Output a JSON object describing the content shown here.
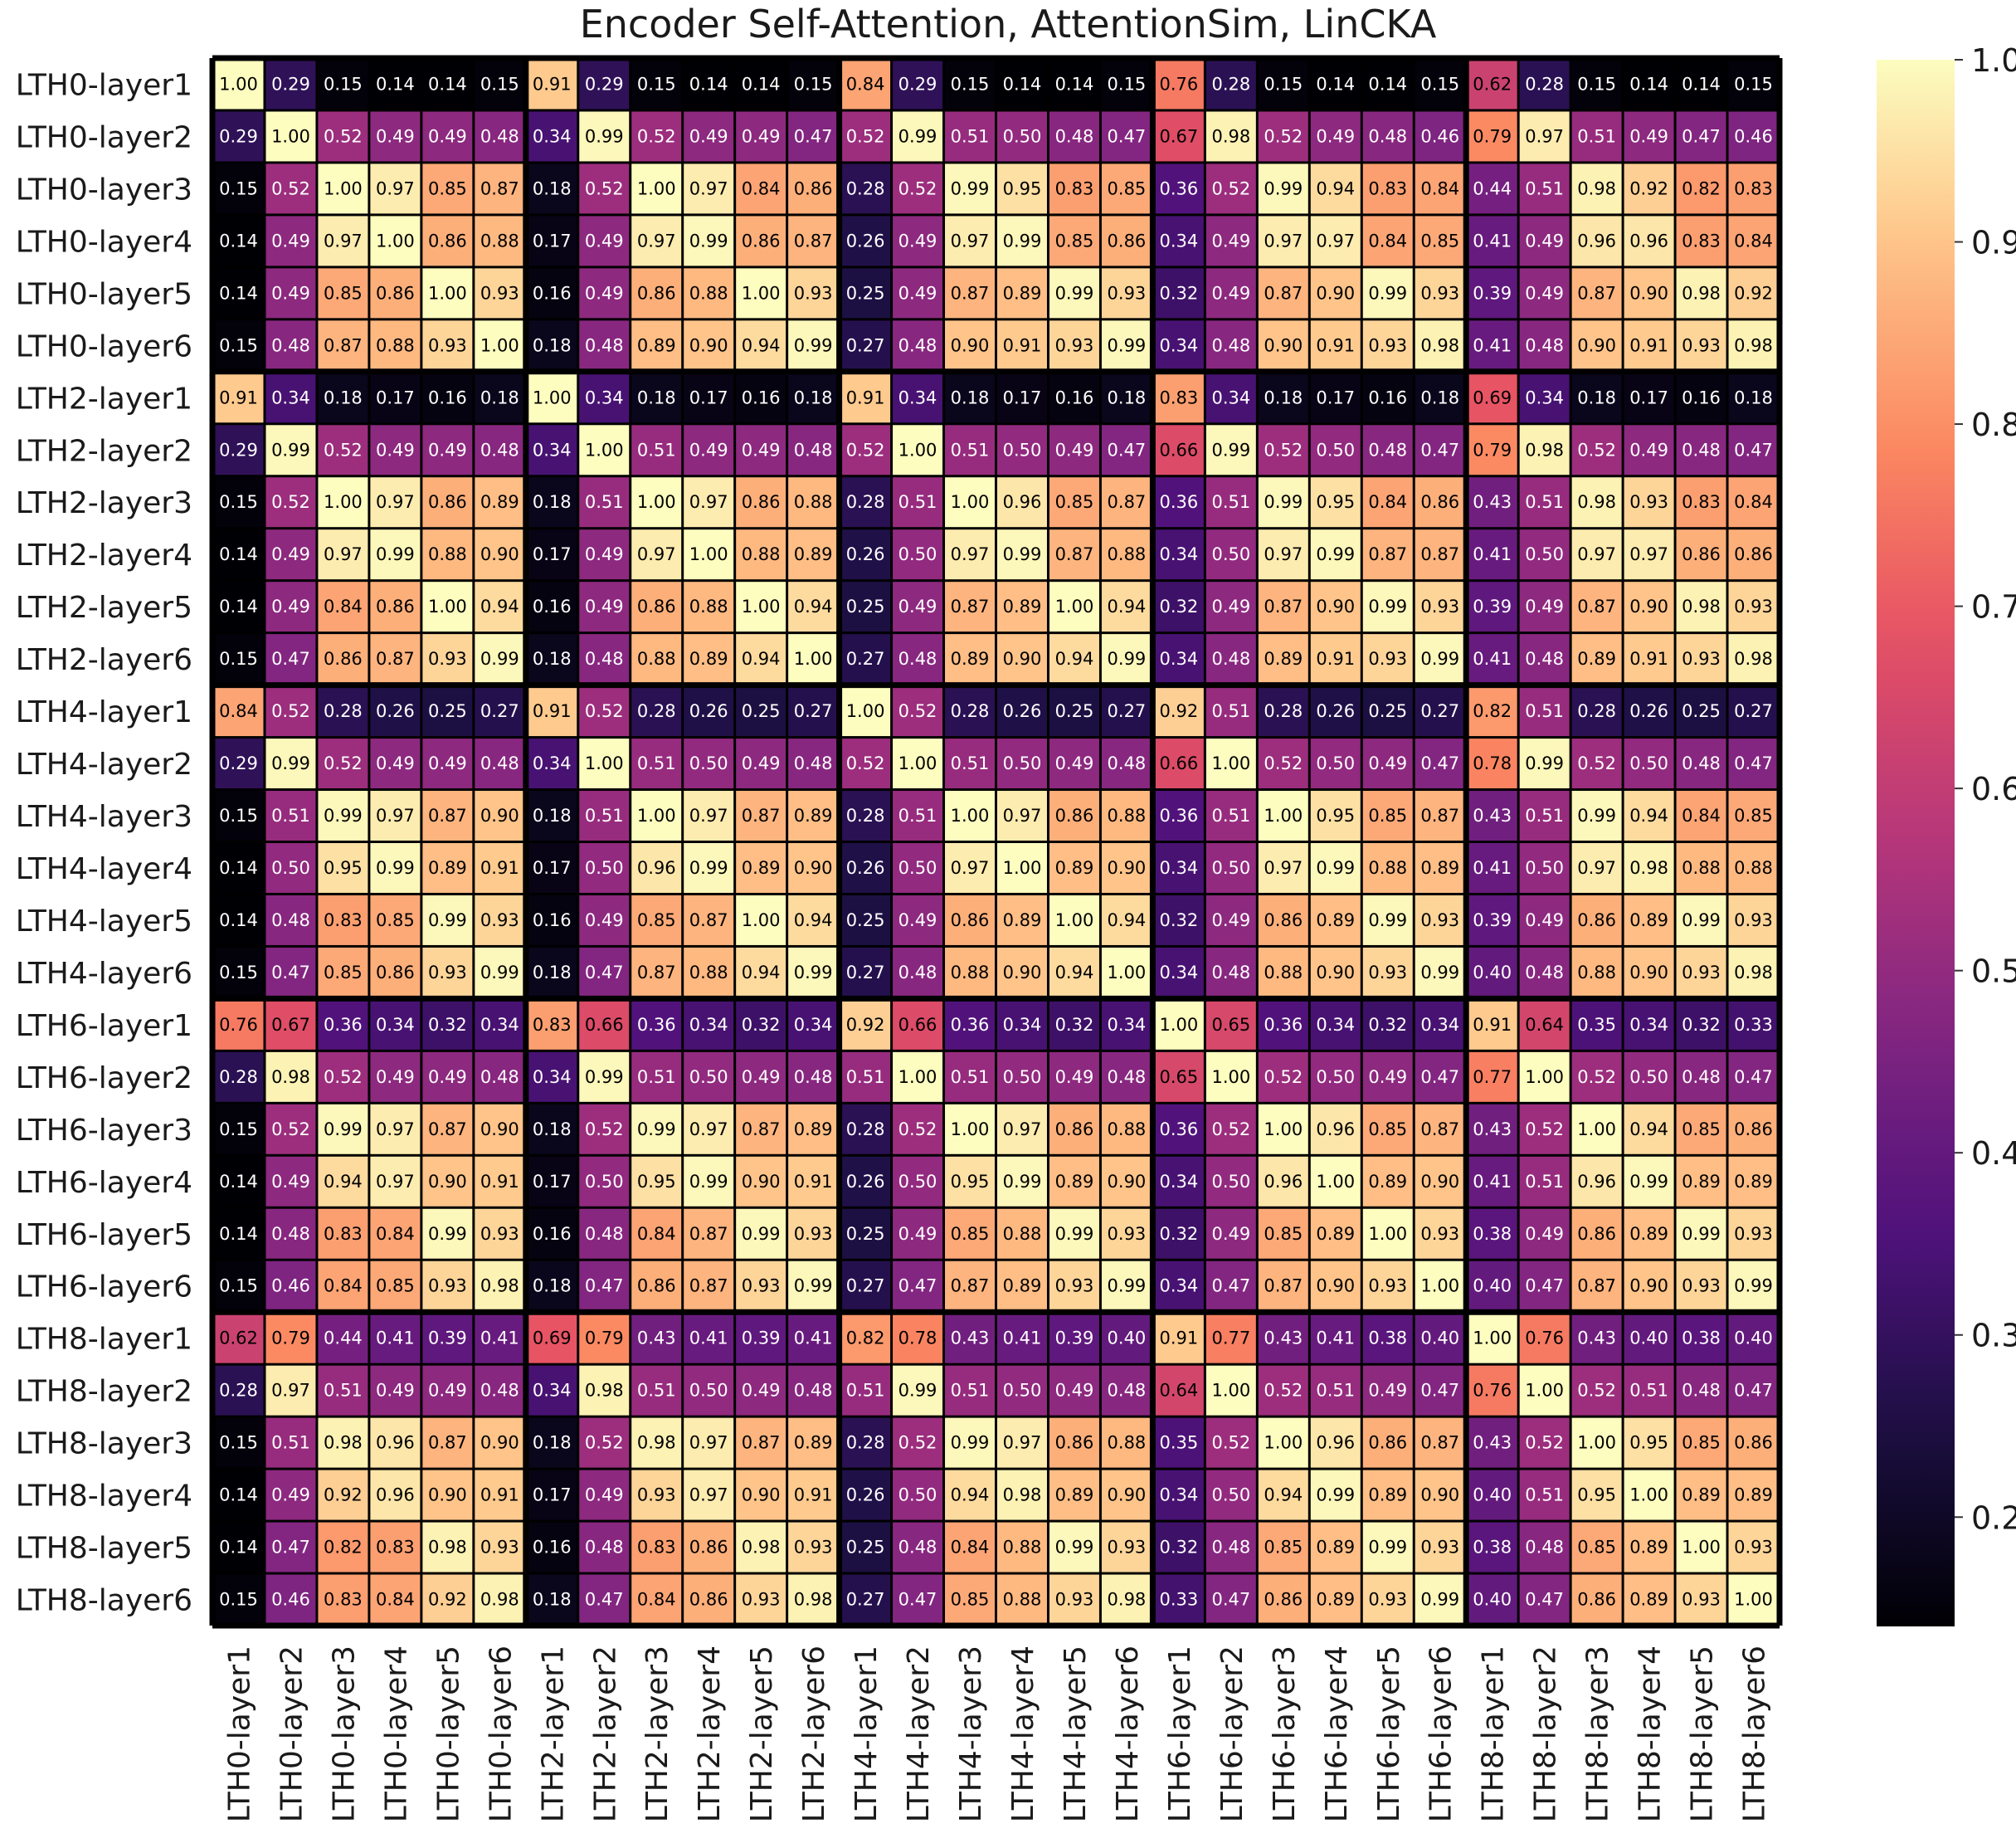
{
  "chart_data": {
    "type": "heatmap",
    "title": "Encoder Self-Attention, AttentionSim, LinCKA",
    "row_labels": [
      "LTH0-layer1",
      "LTH0-layer2",
      "LTH0-layer3",
      "LTH0-layer4",
      "LTH0-layer5",
      "LTH0-layer6",
      "LTH2-layer1",
      "LTH2-layer2",
      "LTH2-layer3",
      "LTH2-layer4",
      "LTH2-layer5",
      "LTH2-layer6",
      "LTH4-layer1",
      "LTH4-layer2",
      "LTH4-layer3",
      "LTH4-layer4",
      "LTH4-layer5",
      "LTH4-layer6",
      "LTH6-layer1",
      "LTH6-layer2",
      "LTH6-layer3",
      "LTH6-layer4",
      "LTH6-layer5",
      "LTH6-layer6",
      "LTH8-layer1",
      "LTH8-layer2",
      "LTH8-layer3",
      "LTH8-layer4",
      "LTH8-layer5",
      "LTH8-layer6"
    ],
    "col_labels": [
      "LTH0-layer1",
      "LTH0-layer2",
      "LTH0-layer3",
      "LTH0-layer4",
      "LTH0-layer5",
      "LTH0-layer6",
      "LTH2-layer1",
      "LTH2-layer2",
      "LTH2-layer3",
      "LTH2-layer4",
      "LTH2-layer5",
      "LTH2-layer6",
      "LTH4-layer1",
      "LTH4-layer2",
      "LTH4-layer3",
      "LTH4-layer4",
      "LTH4-layer5",
      "LTH4-layer6",
      "LTH6-layer1",
      "LTH6-layer2",
      "LTH6-layer3",
      "LTH6-layer4",
      "LTH6-layer5",
      "LTH6-layer6",
      "LTH8-layer1",
      "LTH8-layer2",
      "LTH8-layer3",
      "LTH8-layer4",
      "LTH8-layer5",
      "LTH8-layer6"
    ],
    "values": [
      [
        1.0,
        0.29,
        0.15,
        0.14,
        0.14,
        0.15,
        0.91,
        0.29,
        0.15,
        0.14,
        0.14,
        0.15,
        0.84,
        0.29,
        0.15,
        0.14,
        0.14,
        0.15,
        0.76,
        0.28,
        0.15,
        0.14,
        0.14,
        0.15,
        0.62,
        0.28,
        0.15,
        0.14,
        0.14,
        0.15
      ],
      [
        0.29,
        1.0,
        0.52,
        0.49,
        0.49,
        0.48,
        0.34,
        0.99,
        0.52,
        0.49,
        0.49,
        0.47,
        0.52,
        0.99,
        0.51,
        0.5,
        0.48,
        0.47,
        0.67,
        0.98,
        0.52,
        0.49,
        0.48,
        0.46,
        0.79,
        0.97,
        0.51,
        0.49,
        0.47,
        0.46
      ],
      [
        0.15,
        0.52,
        1.0,
        0.97,
        0.85,
        0.87,
        0.18,
        0.52,
        1.0,
        0.97,
        0.84,
        0.86,
        0.28,
        0.52,
        0.99,
        0.95,
        0.83,
        0.85,
        0.36,
        0.52,
        0.99,
        0.94,
        0.83,
        0.84,
        0.44,
        0.51,
        0.98,
        0.92,
        0.82,
        0.83
      ],
      [
        0.14,
        0.49,
        0.97,
        1.0,
        0.86,
        0.88,
        0.17,
        0.49,
        0.97,
        0.99,
        0.86,
        0.87,
        0.26,
        0.49,
        0.97,
        0.99,
        0.85,
        0.86,
        0.34,
        0.49,
        0.97,
        0.97,
        0.84,
        0.85,
        0.41,
        0.49,
        0.96,
        0.96,
        0.83,
        0.84
      ],
      [
        0.14,
        0.49,
        0.85,
        0.86,
        1.0,
        0.93,
        0.16,
        0.49,
        0.86,
        0.88,
        1.0,
        0.93,
        0.25,
        0.49,
        0.87,
        0.89,
        0.99,
        0.93,
        0.32,
        0.49,
        0.87,
        0.9,
        0.99,
        0.93,
        0.39,
        0.49,
        0.87,
        0.9,
        0.98,
        0.92
      ],
      [
        0.15,
        0.48,
        0.87,
        0.88,
        0.93,
        1.0,
        0.18,
        0.48,
        0.89,
        0.9,
        0.94,
        0.99,
        0.27,
        0.48,
        0.9,
        0.91,
        0.93,
        0.99,
        0.34,
        0.48,
        0.9,
        0.91,
        0.93,
        0.98,
        0.41,
        0.48,
        0.9,
        0.91,
        0.93,
        0.98
      ],
      [
        0.91,
        0.34,
        0.18,
        0.17,
        0.16,
        0.18,
        1.0,
        0.34,
        0.18,
        0.17,
        0.16,
        0.18,
        0.91,
        0.34,
        0.18,
        0.17,
        0.16,
        0.18,
        0.83,
        0.34,
        0.18,
        0.17,
        0.16,
        0.18,
        0.69,
        0.34,
        0.18,
        0.17,
        0.16,
        0.18
      ],
      [
        0.29,
        0.99,
        0.52,
        0.49,
        0.49,
        0.48,
        0.34,
        1.0,
        0.51,
        0.49,
        0.49,
        0.48,
        0.52,
        1.0,
        0.51,
        0.5,
        0.49,
        0.47,
        0.66,
        0.99,
        0.52,
        0.5,
        0.48,
        0.47,
        0.79,
        0.98,
        0.52,
        0.49,
        0.48,
        0.47
      ],
      [
        0.15,
        0.52,
        1.0,
        0.97,
        0.86,
        0.89,
        0.18,
        0.51,
        1.0,
        0.97,
        0.86,
        0.88,
        0.28,
        0.51,
        1.0,
        0.96,
        0.85,
        0.87,
        0.36,
        0.51,
        0.99,
        0.95,
        0.84,
        0.86,
        0.43,
        0.51,
        0.98,
        0.93,
        0.83,
        0.84
      ],
      [
        0.14,
        0.49,
        0.97,
        0.99,
        0.88,
        0.9,
        0.17,
        0.49,
        0.97,
        1.0,
        0.88,
        0.89,
        0.26,
        0.5,
        0.97,
        0.99,
        0.87,
        0.88,
        0.34,
        0.5,
        0.97,
        0.99,
        0.87,
        0.87,
        0.41,
        0.5,
        0.97,
        0.97,
        0.86,
        0.86
      ],
      [
        0.14,
        0.49,
        0.84,
        0.86,
        1.0,
        0.94,
        0.16,
        0.49,
        0.86,
        0.88,
        1.0,
        0.94,
        0.25,
        0.49,
        0.87,
        0.89,
        1.0,
        0.94,
        0.32,
        0.49,
        0.87,
        0.9,
        0.99,
        0.93,
        0.39,
        0.49,
        0.87,
        0.9,
        0.98,
        0.93
      ],
      [
        0.15,
        0.47,
        0.86,
        0.87,
        0.93,
        0.99,
        0.18,
        0.48,
        0.88,
        0.89,
        0.94,
        1.0,
        0.27,
        0.48,
        0.89,
        0.9,
        0.94,
        0.99,
        0.34,
        0.48,
        0.89,
        0.91,
        0.93,
        0.99,
        0.41,
        0.48,
        0.89,
        0.91,
        0.93,
        0.98
      ],
      [
        0.84,
        0.52,
        0.28,
        0.26,
        0.25,
        0.27,
        0.91,
        0.52,
        0.28,
        0.26,
        0.25,
        0.27,
        1.0,
        0.52,
        0.28,
        0.26,
        0.25,
        0.27,
        0.92,
        0.51,
        0.28,
        0.26,
        0.25,
        0.27,
        0.82,
        0.51,
        0.28,
        0.26,
        0.25,
        0.27
      ],
      [
        0.29,
        0.99,
        0.52,
        0.49,
        0.49,
        0.48,
        0.34,
        1.0,
        0.51,
        0.5,
        0.49,
        0.48,
        0.52,
        1.0,
        0.51,
        0.5,
        0.49,
        0.48,
        0.66,
        1.0,
        0.52,
        0.5,
        0.49,
        0.47,
        0.78,
        0.99,
        0.52,
        0.5,
        0.48,
        0.47
      ],
      [
        0.15,
        0.51,
        0.99,
        0.97,
        0.87,
        0.9,
        0.18,
        0.51,
        1.0,
        0.97,
        0.87,
        0.89,
        0.28,
        0.51,
        1.0,
        0.97,
        0.86,
        0.88,
        0.36,
        0.51,
        1.0,
        0.95,
        0.85,
        0.87,
        0.43,
        0.51,
        0.99,
        0.94,
        0.84,
        0.85
      ],
      [
        0.14,
        0.5,
        0.95,
        0.99,
        0.89,
        0.91,
        0.17,
        0.5,
        0.96,
        0.99,
        0.89,
        0.9,
        0.26,
        0.5,
        0.97,
        1.0,
        0.89,
        0.9,
        0.34,
        0.5,
        0.97,
        0.99,
        0.88,
        0.89,
        0.41,
        0.5,
        0.97,
        0.98,
        0.88,
        0.88
      ],
      [
        0.14,
        0.48,
        0.83,
        0.85,
        0.99,
        0.93,
        0.16,
        0.49,
        0.85,
        0.87,
        1.0,
        0.94,
        0.25,
        0.49,
        0.86,
        0.89,
        1.0,
        0.94,
        0.32,
        0.49,
        0.86,
        0.89,
        0.99,
        0.93,
        0.39,
        0.49,
        0.86,
        0.89,
        0.99,
        0.93
      ],
      [
        0.15,
        0.47,
        0.85,
        0.86,
        0.93,
        0.99,
        0.18,
        0.47,
        0.87,
        0.88,
        0.94,
        0.99,
        0.27,
        0.48,
        0.88,
        0.9,
        0.94,
        1.0,
        0.34,
        0.48,
        0.88,
        0.9,
        0.93,
        0.99,
        0.4,
        0.48,
        0.88,
        0.9,
        0.93,
        0.98
      ],
      [
        0.76,
        0.67,
        0.36,
        0.34,
        0.32,
        0.34,
        0.83,
        0.66,
        0.36,
        0.34,
        0.32,
        0.34,
        0.92,
        0.66,
        0.36,
        0.34,
        0.32,
        0.34,
        1.0,
        0.65,
        0.36,
        0.34,
        0.32,
        0.34,
        0.91,
        0.64,
        0.35,
        0.34,
        0.32,
        0.33
      ],
      [
        0.28,
        0.98,
        0.52,
        0.49,
        0.49,
        0.48,
        0.34,
        0.99,
        0.51,
        0.5,
        0.49,
        0.48,
        0.51,
        1.0,
        0.51,
        0.5,
        0.49,
        0.48,
        0.65,
        1.0,
        0.52,
        0.5,
        0.49,
        0.47,
        0.77,
        1.0,
        0.52,
        0.5,
        0.48,
        0.47
      ],
      [
        0.15,
        0.52,
        0.99,
        0.97,
        0.87,
        0.9,
        0.18,
        0.52,
        0.99,
        0.97,
        0.87,
        0.89,
        0.28,
        0.52,
        1.0,
        0.97,
        0.86,
        0.88,
        0.36,
        0.52,
        1.0,
        0.96,
        0.85,
        0.87,
        0.43,
        0.52,
        1.0,
        0.94,
        0.85,
        0.86
      ],
      [
        0.14,
        0.49,
        0.94,
        0.97,
        0.9,
        0.91,
        0.17,
        0.5,
        0.95,
        0.99,
        0.9,
        0.91,
        0.26,
        0.5,
        0.95,
        0.99,
        0.89,
        0.9,
        0.34,
        0.5,
        0.96,
        1.0,
        0.89,
        0.9,
        0.41,
        0.51,
        0.96,
        0.99,
        0.89,
        0.89
      ],
      [
        0.14,
        0.48,
        0.83,
        0.84,
        0.99,
        0.93,
        0.16,
        0.48,
        0.84,
        0.87,
        0.99,
        0.93,
        0.25,
        0.49,
        0.85,
        0.88,
        0.99,
        0.93,
        0.32,
        0.49,
        0.85,
        0.89,
        1.0,
        0.93,
        0.38,
        0.49,
        0.86,
        0.89,
        0.99,
        0.93
      ],
      [
        0.15,
        0.46,
        0.84,
        0.85,
        0.93,
        0.98,
        0.18,
        0.47,
        0.86,
        0.87,
        0.93,
        0.99,
        0.27,
        0.47,
        0.87,
        0.89,
        0.93,
        0.99,
        0.34,
        0.47,
        0.87,
        0.9,
        0.93,
        1.0,
        0.4,
        0.47,
        0.87,
        0.9,
        0.93,
        0.99
      ],
      [
        0.62,
        0.79,
        0.44,
        0.41,
        0.39,
        0.41,
        0.69,
        0.79,
        0.43,
        0.41,
        0.39,
        0.41,
        0.82,
        0.78,
        0.43,
        0.41,
        0.39,
        0.4,
        0.91,
        0.77,
        0.43,
        0.41,
        0.38,
        0.4,
        1.0,
        0.76,
        0.43,
        0.4,
        0.38,
        0.4
      ],
      [
        0.28,
        0.97,
        0.51,
        0.49,
        0.49,
        0.48,
        0.34,
        0.98,
        0.51,
        0.5,
        0.49,
        0.48,
        0.51,
        0.99,
        0.51,
        0.5,
        0.49,
        0.48,
        0.64,
        1.0,
        0.52,
        0.51,
        0.49,
        0.47,
        0.76,
        1.0,
        0.52,
        0.51,
        0.48,
        0.47
      ],
      [
        0.15,
        0.51,
        0.98,
        0.96,
        0.87,
        0.9,
        0.18,
        0.52,
        0.98,
        0.97,
        0.87,
        0.89,
        0.28,
        0.52,
        0.99,
        0.97,
        0.86,
        0.88,
        0.35,
        0.52,
        1.0,
        0.96,
        0.86,
        0.87,
        0.43,
        0.52,
        1.0,
        0.95,
        0.85,
        0.86
      ],
      [
        0.14,
        0.49,
        0.92,
        0.96,
        0.9,
        0.91,
        0.17,
        0.49,
        0.93,
        0.97,
        0.9,
        0.91,
        0.26,
        0.5,
        0.94,
        0.98,
        0.89,
        0.9,
        0.34,
        0.5,
        0.94,
        0.99,
        0.89,
        0.9,
        0.4,
        0.51,
        0.95,
        1.0,
        0.89,
        0.89
      ],
      [
        0.14,
        0.47,
        0.82,
        0.83,
        0.98,
        0.93,
        0.16,
        0.48,
        0.83,
        0.86,
        0.98,
        0.93,
        0.25,
        0.48,
        0.84,
        0.88,
        0.99,
        0.93,
        0.32,
        0.48,
        0.85,
        0.89,
        0.99,
        0.93,
        0.38,
        0.48,
        0.85,
        0.89,
        1.0,
        0.93
      ],
      [
        0.15,
        0.46,
        0.83,
        0.84,
        0.92,
        0.98,
        0.18,
        0.47,
        0.84,
        0.86,
        0.93,
        0.98,
        0.27,
        0.47,
        0.85,
        0.88,
        0.93,
        0.98,
        0.33,
        0.47,
        0.86,
        0.89,
        0.93,
        0.99,
        0.4,
        0.47,
        0.86,
        0.89,
        0.93,
        1.0
      ]
    ],
    "colormap": "magma",
    "vmin": 0.14,
    "vmax": 1.0,
    "colorbar_ticks": [
      "0.2",
      "0.3",
      "0.4",
      "0.5",
      "0.6",
      "0.7",
      "0.8",
      "0.9",
      "1.0"
    ],
    "colorbar_tick_values": [
      0.2,
      0.3,
      0.4,
      0.5,
      0.6,
      0.7,
      0.8,
      0.9,
      1.0
    ],
    "group_size": 6,
    "annotations": "cell values shown with 2 decimals",
    "text_color_light": "#ffffff",
    "text_color_dark": "#000000"
  }
}
